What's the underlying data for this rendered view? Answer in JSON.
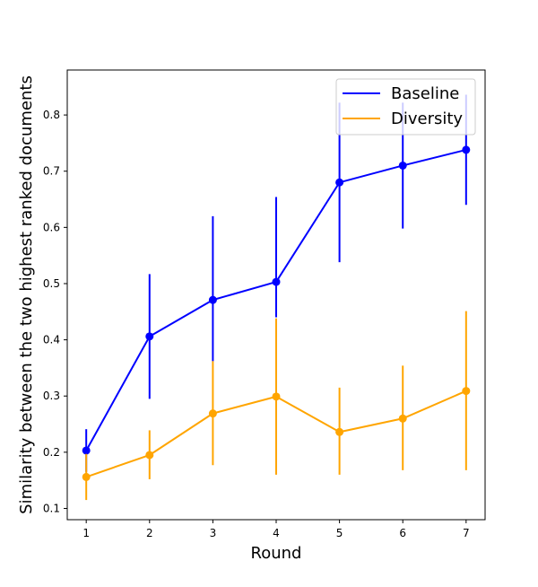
{
  "chart_data": {
    "type": "line",
    "title": "",
    "xlabel": "Round",
    "ylabel": "Similarity between the two highest ranked documents",
    "x": [
      1,
      2,
      3,
      4,
      5,
      6,
      7
    ],
    "xlim": [
      0.7,
      7.3
    ],
    "ylim": [
      0.08,
      0.88
    ],
    "xticks": [
      "1",
      "2",
      "3",
      "4",
      "5",
      "6",
      "7"
    ],
    "yticks": [
      "0.1",
      "0.2",
      "0.3",
      "0.4",
      "0.5",
      "0.6",
      "0.7",
      "0.8"
    ],
    "grid": false,
    "legend_position": "top-right",
    "series": [
      {
        "name": "Baseline",
        "color": "#0000ff",
        "values": [
          0.203,
          0.406,
          0.471,
          0.503,
          0.68,
          0.71,
          0.738
        ],
        "error_low": [
          0.165,
          0.295,
          0.362,
          0.44,
          0.538,
          0.598,
          0.64
        ],
        "error_high": [
          0.241,
          0.517,
          0.62,
          0.654,
          0.822,
          0.822,
          0.836
        ]
      },
      {
        "name": "Diversity",
        "color": "#ffa500",
        "values": [
          0.156,
          0.195,
          0.269,
          0.299,
          0.236,
          0.26,
          0.309
        ],
        "error_low": [
          0.115,
          0.152,
          0.177,
          0.16,
          0.16,
          0.168,
          0.168
        ],
        "error_high": [
          0.197,
          0.239,
          0.362,
          0.438,
          0.315,
          0.354,
          0.451
        ]
      }
    ]
  }
}
